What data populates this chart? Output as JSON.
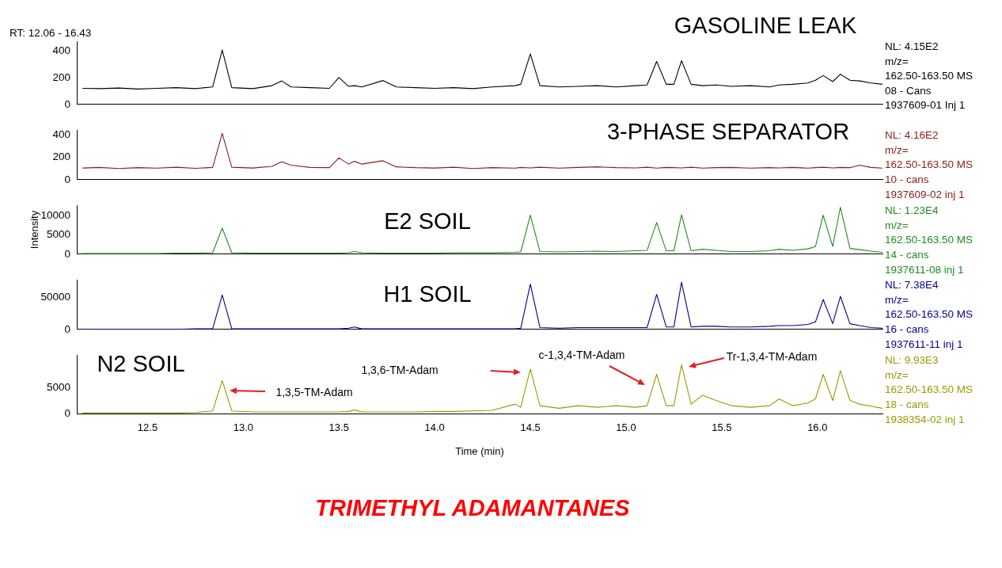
{
  "chart_data": [
    {
      "type": "line",
      "title": "GASOLINE LEAK",
      "color": "#000000",
      "xlim": [
        12.13,
        16.34
      ],
      "ylim": [
        0,
        470
      ],
      "yticks": [
        0,
        200,
        400
      ],
      "tick_labels": "y",
      "grid": false,
      "x": [
        12.16,
        12.25,
        12.35,
        12.45,
        12.55,
        12.65,
        12.75,
        12.84,
        12.89,
        12.94,
        13.05,
        13.15,
        13.2,
        13.25,
        13.35,
        13.45,
        13.5,
        13.55,
        13.58,
        13.62,
        13.73,
        13.8,
        13.9,
        14.0,
        14.1,
        14.2,
        14.3,
        14.42,
        14.45,
        14.5,
        14.55,
        14.65,
        14.75,
        14.85,
        14.95,
        15.05,
        15.11,
        15.16,
        15.21,
        15.25,
        15.29,
        15.34,
        15.4,
        15.47,
        15.55,
        15.65,
        15.75,
        15.8,
        15.87,
        15.95,
        15.99,
        16.03,
        16.08,
        16.12,
        16.17,
        16.22,
        16.28,
        16.34
      ],
      "values": [
        120,
        118,
        122,
        115,
        120,
        125,
        118,
        130,
        405,
        125,
        118,
        140,
        175,
        130,
        125,
        120,
        200,
        135,
        140,
        130,
        178,
        130,
        125,
        120,
        125,
        118,
        130,
        140,
        150,
        375,
        140,
        130,
        135,
        140,
        130,
        140,
        145,
        320,
        150,
        150,
        325,
        150,
        140,
        145,
        135,
        140,
        130,
        145,
        150,
        160,
        180,
        215,
        170,
        225,
        180,
        175,
        160,
        150
      ],
      "annotations": [
        "NL: 4.15E2",
        "m/z=",
        "162.50-163.50  MS",
        "08 - Cans",
        "1937609-01 Inj 1",
        "RT: 12.06 - 16.43"
      ]
    },
    {
      "type": "line",
      "title": "3-PHASE SEPARATOR",
      "color": "#8b1a1a",
      "xlim": [
        12.13,
        16.34
      ],
      "ylim": [
        0,
        445
      ],
      "yticks": [
        0,
        200,
        400
      ],
      "tick_labels": "y",
      "grid": false,
      "x": [
        12.16,
        12.25,
        12.35,
        12.45,
        12.55,
        12.65,
        12.75,
        12.84,
        12.89,
        12.94,
        13.05,
        13.15,
        13.2,
        13.25,
        13.35,
        13.45,
        13.5,
        13.55,
        13.58,
        13.62,
        13.73,
        13.8,
        13.9,
        14.0,
        14.1,
        14.2,
        14.3,
        14.42,
        14.45,
        14.5,
        14.55,
        14.65,
        14.75,
        14.85,
        14.95,
        15.05,
        15.11,
        15.16,
        15.21,
        15.25,
        15.29,
        15.34,
        15.4,
        15.47,
        15.55,
        15.65,
        15.75,
        15.8,
        15.87,
        15.95,
        15.99,
        16.03,
        16.08,
        16.12,
        16.17,
        16.22,
        16.28,
        16.34
      ],
      "values": [
        105,
        110,
        100,
        108,
        104,
        112,
        102,
        110,
        415,
        112,
        105,
        120,
        160,
        130,
        110,
        108,
        195,
        140,
        165,
        140,
        170,
        115,
        108,
        105,
        112,
        100,
        108,
        104,
        110,
        106,
        112,
        104,
        110,
        115,
        108,
        106,
        112,
        104,
        110,
        108,
        106,
        112,
        104,
        108,
        110,
        104,
        108,
        106,
        110,
        104,
        108,
        112,
        106,
        110,
        108,
        130,
        110,
        104
      ],
      "annotations": [
        "NL: 4.16E2",
        "m/z=",
        "162.50-163.50  MS",
        "10 - cans",
        "1937609-02 inj 1"
      ]
    },
    {
      "type": "line",
      "title": "E2 SOIL",
      "ylabel": "Intensity",
      "color": "#1e8c1e",
      "xlim": [
        12.13,
        16.34
      ],
      "ylim": [
        0,
        12800
      ],
      "yticks": [
        0,
        5000,
        10000
      ],
      "tick_labels": "y",
      "grid": false,
      "x": [
        12.16,
        12.25,
        12.35,
        12.45,
        12.55,
        12.65,
        12.75,
        12.84,
        12.89,
        12.94,
        13.05,
        13.15,
        13.2,
        13.25,
        13.35,
        13.45,
        13.5,
        13.55,
        13.58,
        13.62,
        13.73,
        13.8,
        13.9,
        14.0,
        14.1,
        14.2,
        14.3,
        14.42,
        14.45,
        14.5,
        14.55,
        14.65,
        14.75,
        14.85,
        14.95,
        15.05,
        15.11,
        15.16,
        15.21,
        15.25,
        15.29,
        15.34,
        15.4,
        15.47,
        15.55,
        15.65,
        15.75,
        15.8,
        15.87,
        15.95,
        15.99,
        16.03,
        16.08,
        16.12,
        16.17,
        16.22,
        16.28,
        16.34
      ],
      "values": [
        200,
        200,
        200,
        200,
        200,
        300,
        300,
        400,
        6800,
        400,
        300,
        300,
        300,
        300,
        300,
        300,
        300,
        400,
        700,
        400,
        300,
        300,
        300,
        300,
        400,
        400,
        400,
        500,
        600,
        10200,
        700,
        600,
        700,
        800,
        700,
        900,
        1000,
        8300,
        900,
        900,
        10300,
        900,
        1300,
        1000,
        700,
        700,
        900,
        1300,
        1000,
        1400,
        2000,
        10200,
        2000,
        12300,
        1500,
        1200,
        800,
        500
      ],
      "annotations": [
        "NL: 1.23E4",
        "m/z=",
        "162.50-163.50  MS",
        "14 - cans",
        "1937611-08 inj 1"
      ]
    },
    {
      "type": "line",
      "title": "H1 SOIL",
      "color": "#00008b",
      "xlim": [
        12.13,
        16.34
      ],
      "ylim": [
        0,
        78000
      ],
      "yticks": [
        0,
        50000
      ],
      "tick_labels": "y",
      "grid": false,
      "x": [
        12.16,
        12.25,
        12.35,
        12.45,
        12.55,
        12.65,
        12.75,
        12.84,
        12.89,
        12.94,
        13.05,
        13.15,
        13.2,
        13.25,
        13.35,
        13.45,
        13.5,
        13.55,
        13.58,
        13.62,
        13.73,
        13.8,
        13.9,
        14.0,
        14.1,
        14.2,
        14.3,
        14.42,
        14.45,
        14.5,
        14.55,
        14.65,
        14.75,
        14.85,
        14.95,
        15.05,
        15.11,
        15.16,
        15.21,
        15.25,
        15.29,
        15.34,
        15.4,
        15.47,
        15.55,
        15.65,
        15.75,
        15.8,
        15.87,
        15.95,
        15.99,
        16.03,
        16.08,
        16.12,
        16.17,
        16.22,
        16.28,
        16.34
      ],
      "values": [
        0,
        0,
        0,
        0,
        0,
        0,
        1000,
        1000,
        54000,
        1000,
        1000,
        1000,
        1000,
        1000,
        1000,
        1000,
        1000,
        2000,
        4000,
        1000,
        1000,
        1000,
        1000,
        1000,
        1000,
        1000,
        1000,
        1000,
        2000,
        71000,
        3000,
        2000,
        3000,
        3000,
        3000,
        3000,
        3000,
        55000,
        4000,
        4000,
        74000,
        4000,
        5000,
        5000,
        4000,
        4000,
        5000,
        6000,
        6000,
        8000,
        12000,
        47000,
        9000,
        52000,
        9000,
        6000,
        3000,
        2000
      ],
      "annotations": [
        "NL: 7.38E4",
        "m/z=",
        "162.50-163.50  MS",
        "16 - cans",
        "1937611-11 inj 1"
      ]
    },
    {
      "type": "line",
      "title": "N2 SOIL",
      "xlabel": "Time (min)",
      "color": "#9a9a00",
      "xlim": [
        12.13,
        16.34
      ],
      "ylim": [
        0,
        11200
      ],
      "yticks": [
        0,
        5000
      ],
      "xticks": [
        12.5,
        {
          "value": 13,
          "label": "13.0"
        },
        13.5,
        {
          "value": 14,
          "label": "14.0"
        },
        14.5,
        {
          "value": 15,
          "label": "15.0"
        },
        15.5,
        {
          "value": 16,
          "label": "16.0"
        }
      ],
      "grid": false,
      "x": [
        12.16,
        12.25,
        12.35,
        12.45,
        12.55,
        12.65,
        12.75,
        12.84,
        12.89,
        12.94,
        13.05,
        13.15,
        13.2,
        13.25,
        13.35,
        13.45,
        13.5,
        13.55,
        13.58,
        13.62,
        13.73,
        13.8,
        13.9,
        14.0,
        14.1,
        14.2,
        14.3,
        14.42,
        14.45,
        14.5,
        14.55,
        14.65,
        14.75,
        14.85,
        14.95,
        15.05,
        15.11,
        15.16,
        15.21,
        15.25,
        15.29,
        15.34,
        15.4,
        15.47,
        15.55,
        15.65,
        15.75,
        15.8,
        15.87,
        15.95,
        15.99,
        16.03,
        16.08,
        16.12,
        16.17,
        16.22,
        16.28,
        16.34
      ],
      "values": [
        100,
        100,
        100,
        100,
        100,
        100,
        200,
        500,
        6300,
        500,
        300,
        300,
        300,
        300,
        300,
        300,
        300,
        400,
        700,
        300,
        300,
        300,
        300,
        400,
        400,
        500,
        600,
        1800,
        1200,
        8500,
        1500,
        1000,
        1500,
        1200,
        1500,
        1200,
        1500,
        7500,
        1500,
        1500,
        9300,
        1800,
        3500,
        2500,
        1500,
        1200,
        1500,
        2800,
        1500,
        2000,
        2800,
        7500,
        2500,
        8200,
        2500,
        1800,
        1400,
        1000
      ],
      "annotations": [
        "NL: 9.93E3",
        "m/z=",
        "162.50-163.50  MS",
        "18 - cans",
        "1938354-02 inj 1",
        "1,3,5-TM-Adam",
        "1,3,6-TM-Adam",
        "c-1,3,4-TM-Adam",
        "Tr-1,3,4-TM-Adam",
        "TRIMETHYL ADAMANTANES"
      ]
    }
  ]
}
